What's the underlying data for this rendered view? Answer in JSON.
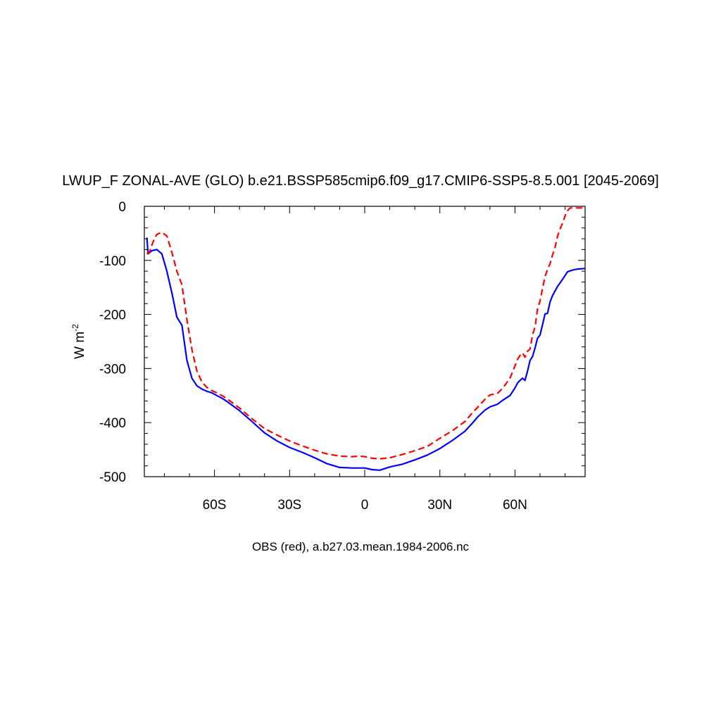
{
  "chart_data": {
    "type": "line",
    "title": "LWUP_F ZONAL-AVE (GLO) b.e21.BSSP585cmip6.f09_g17.CMIP6-SSP5-8.5.001 [2045-2069]",
    "ylabel_main": "W m",
    "ylabel_sup": "-2",
    "caption": "OBS (red), a.b27.03.mean.1984-2006.nc",
    "xlim": [
      -88,
      88
    ],
    "ylim": [
      -500,
      0
    ],
    "x_ticks": [
      {
        "value": -60,
        "label": "60S"
      },
      {
        "value": -30,
        "label": "30S"
      },
      {
        "value": 0,
        "label": "0"
      },
      {
        "value": 30,
        "label": "30N"
      },
      {
        "value": 60,
        "label": "60N"
      }
    ],
    "y_ticks": [
      {
        "value": 0,
        "label": "0"
      },
      {
        "value": -100,
        "label": "-100"
      },
      {
        "value": -200,
        "label": "-200"
      },
      {
        "value": -300,
        "label": "-300"
      },
      {
        "value": -400,
        "label": "-400"
      },
      {
        "value": -500,
        "label": "-500"
      }
    ],
    "series": [
      {
        "color": "#0000ff",
        "dash": "solid",
        "x": [
          -87,
          -86.5,
          -85,
          -83,
          -81,
          -79,
          -77,
          -75,
          -73,
          -71,
          -69,
          -67,
          -65,
          -63,
          -61,
          -59,
          -57,
          -55,
          -50,
          -45,
          -40,
          -35,
          -30,
          -25,
          -20,
          -15,
          -10,
          -5,
          0,
          3,
          6,
          10,
          15,
          20,
          25,
          30,
          35,
          40,
          43,
          45,
          48,
          50,
          53,
          55,
          58,
          60,
          61,
          62,
          63,
          64,
          65,
          66,
          67,
          68,
          69,
          70,
          71,
          72,
          73,
          74,
          75,
          77,
          79,
          81,
          83,
          85,
          88
        ],
        "y": [
          -58,
          -88,
          -82,
          -80,
          -88,
          -120,
          -160,
          -205,
          -220,
          -285,
          -318,
          -332,
          -338,
          -342,
          -345,
          -350,
          -355,
          -361,
          -378,
          -398,
          -419,
          -434,
          -446,
          -455,
          -465,
          -476,
          -483,
          -484,
          -484,
          -487,
          -488,
          -482,
          -477,
          -469,
          -460,
          -448,
          -433,
          -416,
          -401,
          -390,
          -377,
          -371,
          -366,
          -359,
          -350,
          -336,
          -327,
          -322,
          -318,
          -322,
          -305,
          -285,
          -278,
          -262,
          -244,
          -238,
          -219,
          -199,
          -198,
          -177,
          -165,
          -148,
          -135,
          -121,
          -118,
          -116,
          -115
        ]
      },
      {
        "color": "#ff0000",
        "dash": "dashed",
        "x": [
          -87,
          -86,
          -85,
          -84,
          -83,
          -81,
          -79,
          -77,
          -75,
          -73,
          -71,
          -69,
          -67,
          -65,
          -63,
          -61,
          -59,
          -57,
          -55,
          -50,
          -45,
          -40,
          -35,
          -30,
          -25,
          -20,
          -15,
          -10,
          -5,
          -2,
          0,
          3,
          6,
          10,
          15,
          20,
          25,
          30,
          35,
          40,
          43,
          45,
          48,
          50,
          53,
          55,
          58,
          60,
          61,
          62,
          63,
          64,
          65,
          66,
          67,
          68,
          69,
          70,
          71,
          72,
          73,
          74,
          75,
          76,
          77,
          78,
          79,
          80,
          81,
          82,
          83,
          84,
          86,
          88
        ],
        "y": [
          -88,
          -85,
          -72,
          -60,
          -52,
          -48,
          -55,
          -85,
          -120,
          -145,
          -210,
          -265,
          -305,
          -325,
          -335,
          -341,
          -345,
          -350,
          -356,
          -373,
          -393,
          -411,
          -423,
          -434,
          -443,
          -451,
          -458,
          -462,
          -463,
          -462,
          -463,
          -466,
          -467,
          -465,
          -459,
          -452,
          -444,
          -429,
          -415,
          -398,
          -382,
          -372,
          -357,
          -349,
          -346,
          -337,
          -318,
          -295,
          -283,
          -276,
          -271,
          -279,
          -268,
          -264,
          -238,
          -223,
          -190,
          -175,
          -152,
          -130,
          -117,
          -106,
          -90,
          -76,
          -55,
          -42,
          -31,
          -18,
          -8,
          -3,
          -3,
          -3,
          -3,
          -3
        ]
      }
    ]
  }
}
